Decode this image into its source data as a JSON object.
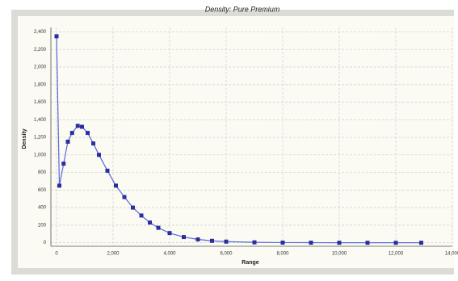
{
  "chart_data": {
    "type": "line",
    "title": "Density: Pure Premium",
    "x_label": "Range",
    "y_label": "Density",
    "x": [
      0,
      100,
      250,
      400,
      550,
      750,
      900,
      1100,
      1300,
      1500,
      1800,
      2100,
      2400,
      2700,
      3000,
      3300,
      3600,
      4000,
      4500,
      5000,
      5500,
      6000,
      7000,
      8000,
      9000,
      10000,
      11000,
      12000,
      12900
    ],
    "series": [
      {
        "name": "Density",
        "color": "#2b2f9e",
        "values": [
          2350,
          650,
          900,
          1150,
          1250,
          1330,
          1320,
          1250,
          1130,
          1000,
          820,
          650,
          520,
          400,
          310,
          230,
          170,
          110,
          65,
          38,
          22,
          13,
          5,
          2,
          1,
          0.5,
          0,
          0,
          0
        ]
      }
    ],
    "xlim": [
      -200,
      14000
    ],
    "xticks": [
      0,
      {
        "value": 2000,
        "label": "2,000"
      },
      {
        "value": 4000,
        "label": "4,000"
      },
      {
        "value": 6000,
        "label": "6,000"
      },
      {
        "value": 8000,
        "label": "8,000"
      },
      {
        "value": 10000,
        "label": "10,000"
      },
      {
        "value": 12000,
        "label": "12,000"
      },
      {
        "value": 14000,
        "label": "14,000"
      }
    ],
    "ylim": [
      -40,
      2450
    ],
    "yticks": [
      0,
      200,
      400,
      600,
      800,
      {
        "value": 1000,
        "label": "1,000"
      },
      {
        "value": 1200,
        "label": "1,200"
      },
      {
        "value": 1400,
        "label": "1,400"
      },
      {
        "value": 1600,
        "label": "1,600"
      },
      {
        "value": 1800,
        "label": "1,800"
      },
      {
        "value": 2000,
        "label": "2,000"
      },
      {
        "value": 2200,
        "label": "2,200"
      },
      {
        "value": 2400,
        "label": "2,400"
      }
    ],
    "grid": true
  }
}
